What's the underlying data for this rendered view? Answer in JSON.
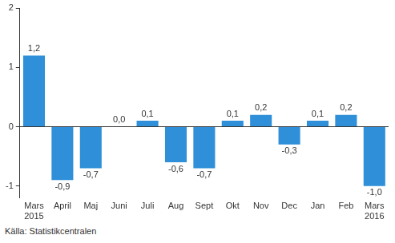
{
  "chart_data": {
    "type": "bar",
    "categories": [
      "Mars 2015",
      "April",
      "Maj",
      "Juni",
      "Juli",
      "Aug",
      "Sept",
      "Okt",
      "Nov",
      "Dec",
      "Jan",
      "Feb",
      "Mars 2016"
    ],
    "values": [
      1.2,
      -0.9,
      -0.7,
      0.0,
      0.1,
      -0.6,
      -0.7,
      0.1,
      0.2,
      -0.3,
      0.1,
      0.2,
      -1.0
    ],
    "value_labels": [
      "1,2",
      "-0,9",
      "-0,7",
      "0,0",
      "0,1",
      "-0,6",
      "-0,7",
      "0,1",
      "0,2",
      "-0,3",
      "0,1",
      "0,2",
      "-1,0"
    ],
    "data_labels": true,
    "color": "#2f8fd8",
    "ylim": [
      -1.2,
      2
    ],
    "yticks": [
      -1,
      0,
      1,
      2
    ],
    "grid": false,
    "source": "Källa: Statistikcentralen"
  }
}
